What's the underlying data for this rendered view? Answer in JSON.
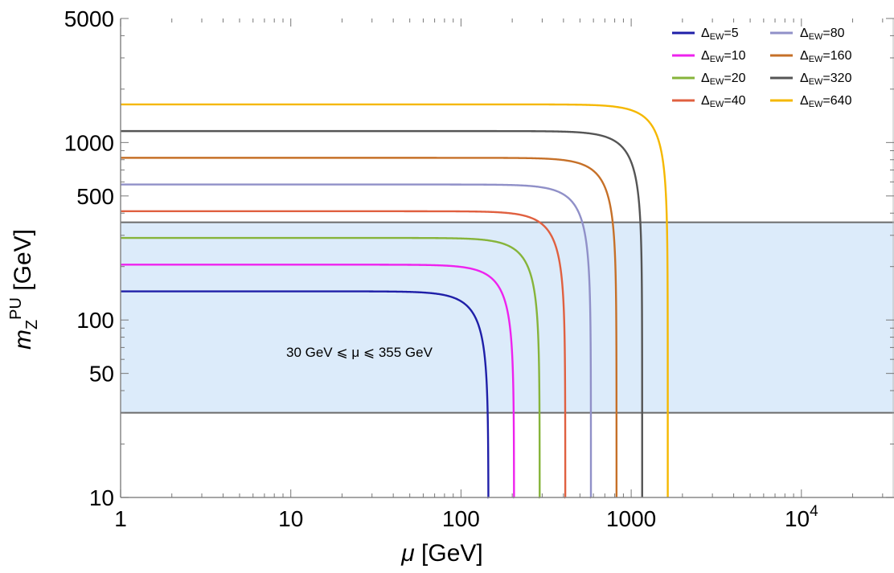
{
  "chart_data": {
    "type": "line",
    "xscale": "log",
    "yscale": "log",
    "xlim": [
      1,
      35000
    ],
    "ylim": [
      10,
      5000
    ],
    "x_ticks": [
      {
        "value": 1,
        "label": "1"
      },
      {
        "value": 10,
        "label": "10"
      },
      {
        "value": 100,
        "label": "100"
      },
      {
        "value": 1000,
        "label": "1000"
      },
      {
        "value": 10000,
        "label": "10",
        "exp": "4"
      }
    ],
    "y_ticks": [
      {
        "value": 10,
        "label": "10"
      },
      {
        "value": 50,
        "label": "50"
      },
      {
        "value": 100,
        "label": "100"
      },
      {
        "value": 500,
        "label": "500"
      },
      {
        "value": 1000,
        "label": "1000"
      },
      {
        "value": 5000,
        "label": "5000"
      }
    ],
    "xlabel": {
      "prefix": "μ",
      "rest": " [GeV]"
    },
    "ylabel": {
      "m": "m",
      "sub": "Z",
      "sup": "PU",
      "rest": " [GeV]"
    },
    "grid": false,
    "legend_placement": "top-right",
    "band": {
      "ymin": 30,
      "ymax": 355,
      "label": "30 GeV ⩽ μ ⩽ 355 GeV",
      "fill": "#dcebfa",
      "edge": "#6b6b6b"
    },
    "series": [
      {
        "name": "Δ",
        "sub": "EW",
        "val": "=5",
        "delta": 5,
        "mu_max": 145,
        "m_plateau": 145,
        "color": "#1f1fa8"
      },
      {
        "name": "Δ",
        "sub": "EW",
        "val": "=10",
        "delta": 10,
        "mu_max": 205,
        "m_plateau": 205,
        "color": "#ee22ee"
      },
      {
        "name": "Δ",
        "sub": "EW",
        "val": "=20",
        "delta": 20,
        "mu_max": 290,
        "m_plateau": 290,
        "color": "#86b43a"
      },
      {
        "name": "Δ",
        "sub": "EW",
        "val": "=40",
        "delta": 40,
        "mu_max": 410,
        "m_plateau": 410,
        "color": "#e06040"
      },
      {
        "name": "Δ",
        "sub": "EW",
        "val": "=80",
        "delta": 80,
        "mu_max": 580,
        "m_plateau": 580,
        "color": "#9090c8"
      },
      {
        "name": "Δ",
        "sub": "EW",
        "val": "=160",
        "delta": 160,
        "mu_max": 820,
        "m_plateau": 820,
        "color": "#c67028"
      },
      {
        "name": "Δ",
        "sub": "EW",
        "val": "=320",
        "delta": 320,
        "mu_max": 1160,
        "m_plateau": 1160,
        "color": "#555555"
      },
      {
        "name": "Δ",
        "sub": "EW",
        "val": "=640",
        "delta": 640,
        "mu_max": 1640,
        "m_plateau": 1640,
        "color": "#f5b800"
      }
    ]
  }
}
